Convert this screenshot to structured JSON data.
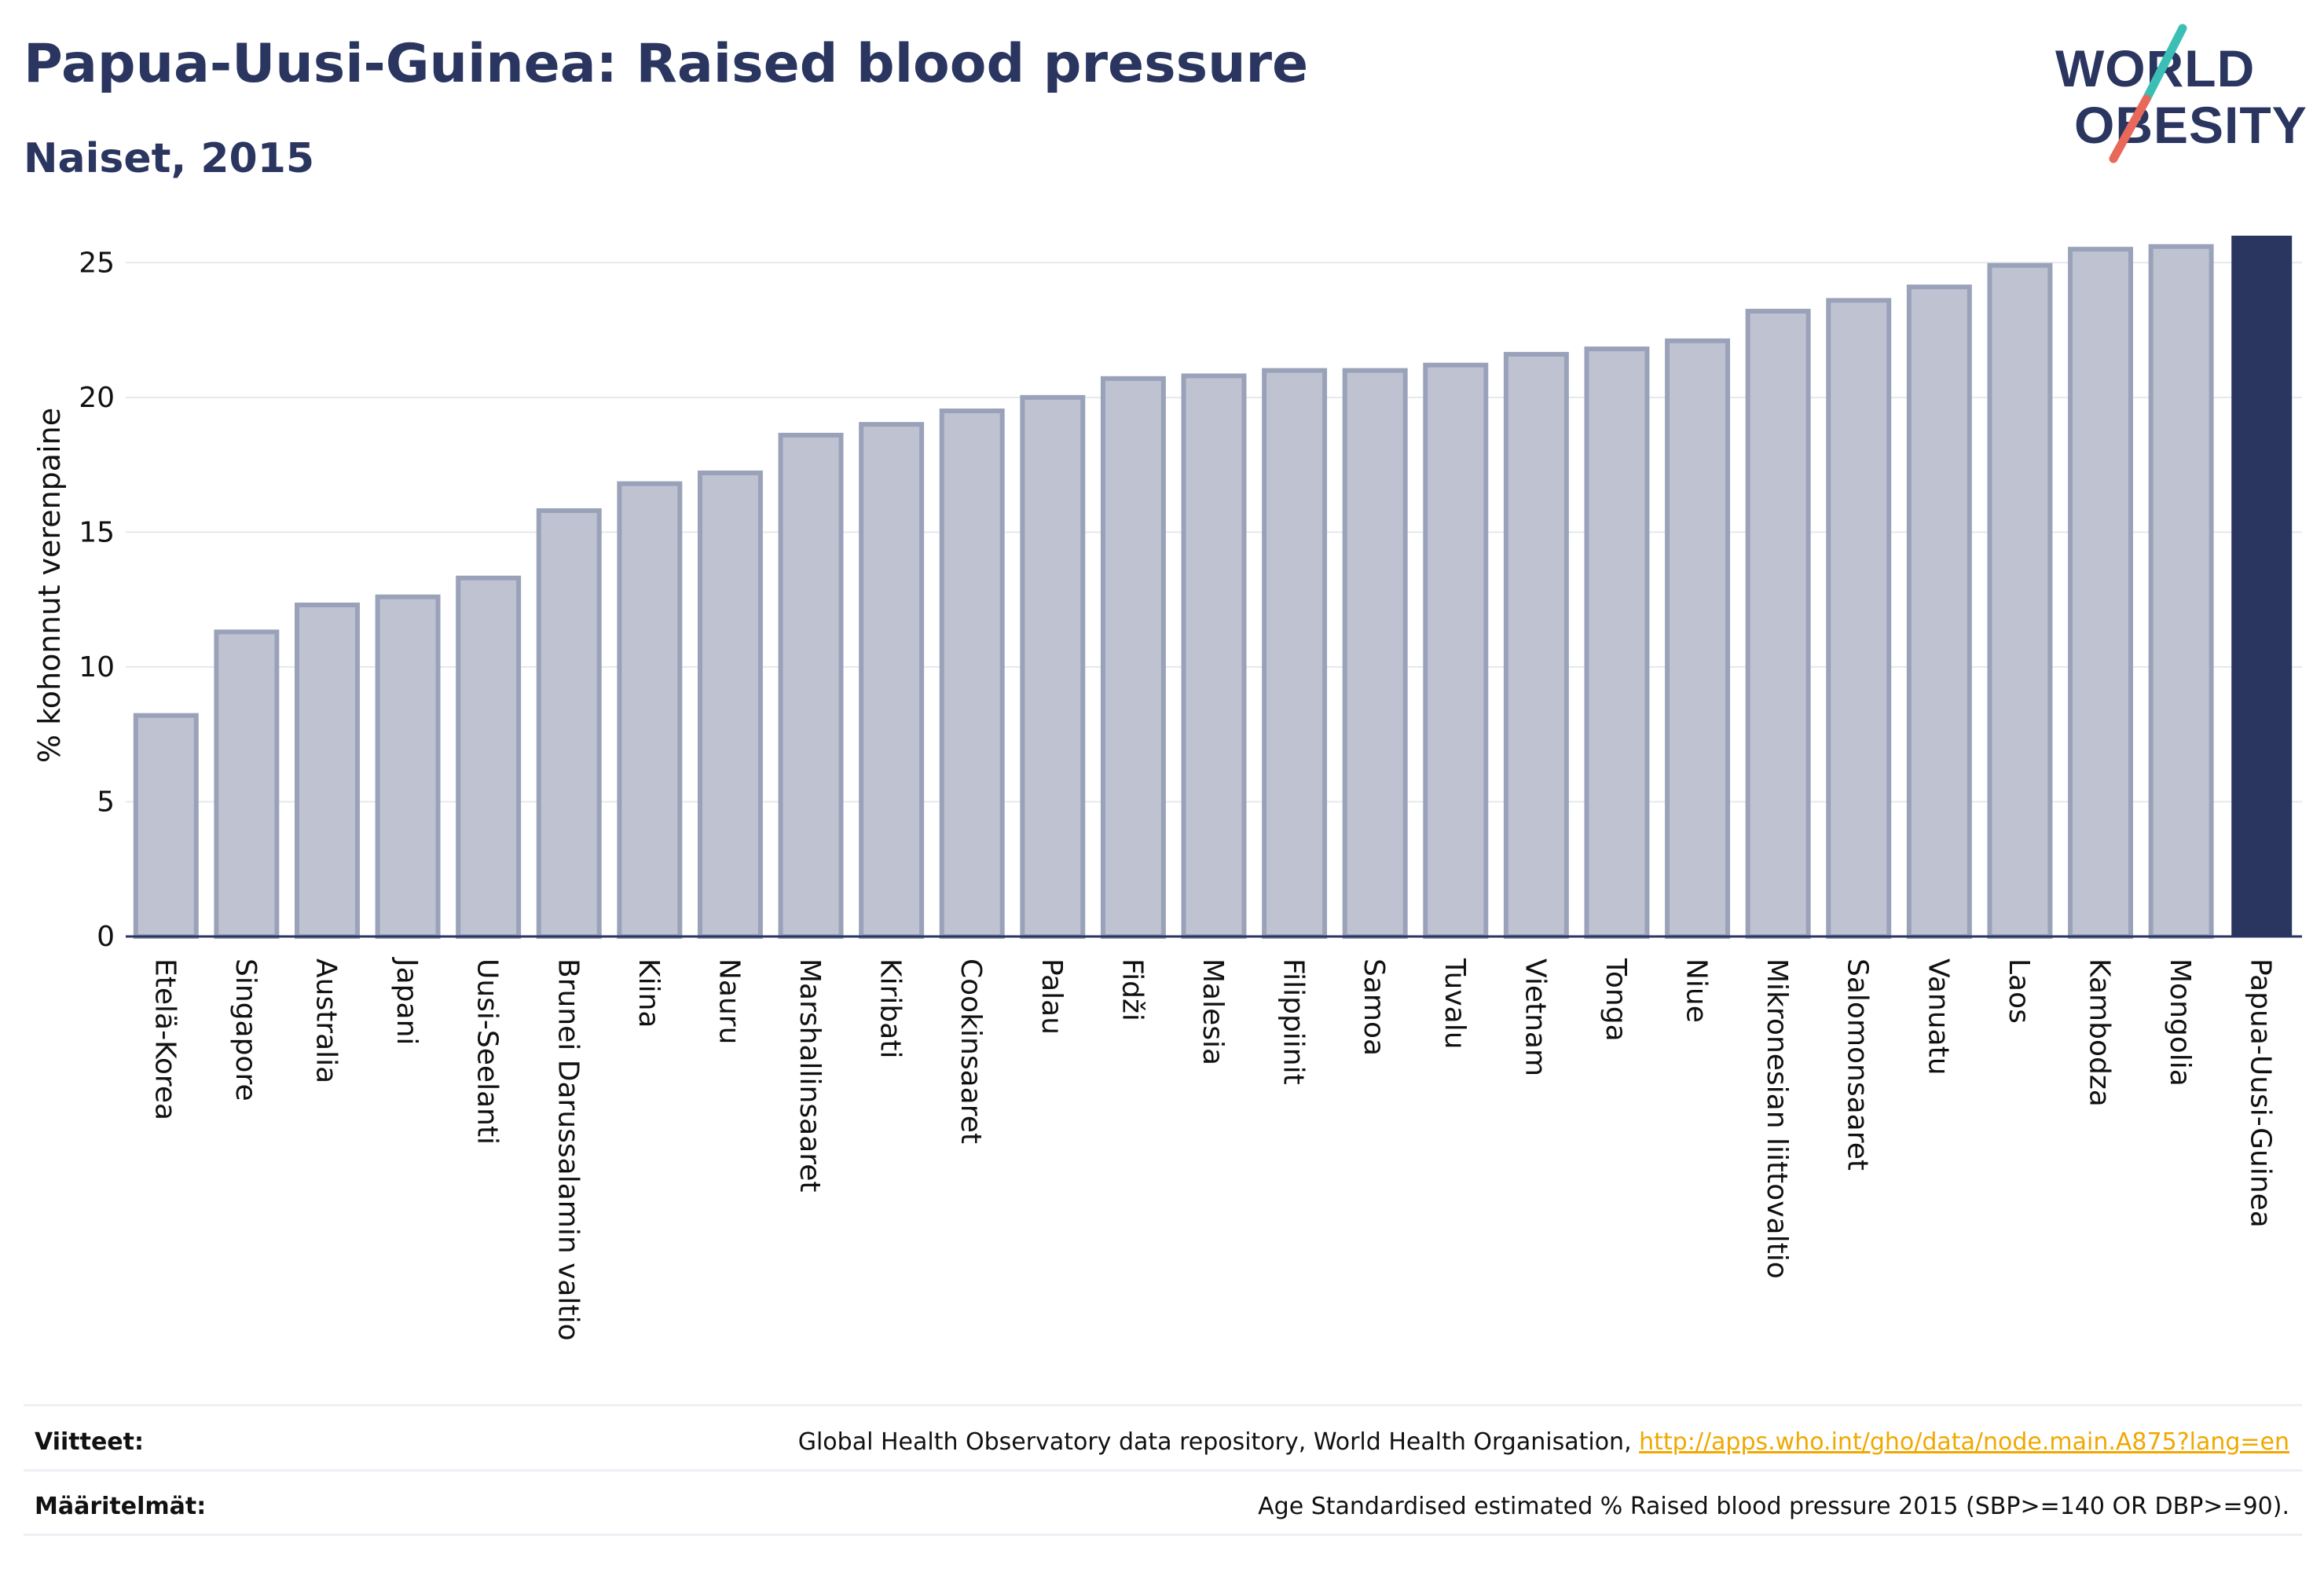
{
  "header": {
    "title": "Papua-Uusi-Guinea: Raised blood pressure",
    "subtitle": "Naiset, 2015"
  },
  "logo": {
    "line1": "WORLD",
    "line2": "OBESITY",
    "slash_color_top": "#3bbfb5",
    "slash_color_bottom": "#e8685a"
  },
  "chart_data": {
    "type": "bar",
    "ylabel": "% kohonnut verenpaine",
    "ylim": [
      0,
      26
    ],
    "yticks": [
      0,
      5,
      10,
      15,
      20,
      25
    ],
    "grid": true,
    "categories": [
      "Etelä-Korea",
      "Singapore",
      "Australia",
      "Japani",
      "Uusi-Seelanti",
      "Brunei Darussalamin valtio",
      "Kiina",
      "Nauru",
      "Marshallinsaaret",
      "Kiribati",
      "Cookinsaaret",
      "Palau",
      "Fidži",
      "Malesia",
      "Filippiinit",
      "Samoa",
      "Tuvalu",
      "Vietnam",
      "Tonga",
      "Niue",
      "Mikronesian liittovaltio",
      "Salomonsaaret",
      "Vanuatu",
      "Laos",
      "Kambodza",
      "Mongolia",
      "Papua-Uusi-Guinea"
    ],
    "values": [
      8.2,
      11.3,
      12.3,
      12.6,
      13.3,
      15.8,
      16.8,
      17.2,
      18.6,
      19.0,
      19.5,
      20.0,
      20.7,
      20.8,
      21.0,
      21.0,
      21.2,
      21.6,
      21.8,
      22.1,
      23.2,
      23.6,
      24.1,
      24.9,
      25.5,
      25.6,
      26.0
    ],
    "highlight": "Papua-Uusi-Guinea",
    "colors": {
      "bar": "#bfc3d1",
      "bar_edge": "#9aa2ba",
      "highlight": "#2a3560",
      "grid": "#e6e8ee",
      "axis": "#2a3560",
      "text": "#111111"
    }
  },
  "footer": {
    "references_label": "Viitteet:",
    "references_text": "Global Health Observatory data repository, World Health Organisation, ",
    "references_link": "http://apps.who.int/gho/data/node.main.A875?lang=en",
    "definitions_label": "Määritelmät:",
    "definitions_text": "Age Standardised estimated % Raised blood pressure 2015 (SBP>=140 OR DBP>=90)."
  }
}
